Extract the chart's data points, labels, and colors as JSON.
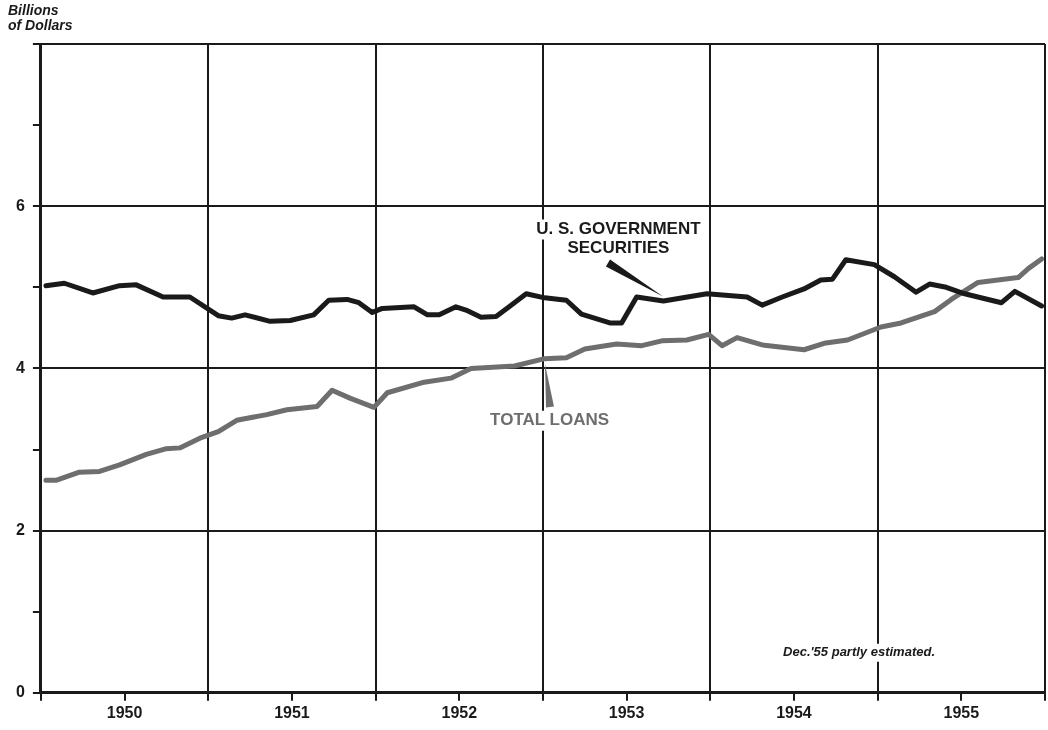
{
  "chart_data": {
    "type": "line",
    "ylabel": "Billions\nof Dollars",
    "xlim": [
      1950,
      1956
    ],
    "xticks": [
      {
        "value": 1950,
        "label": null
      },
      {
        "value": 1950.5,
        "label": "1950"
      },
      {
        "value": 1951,
        "label": null
      },
      {
        "value": 1951.5,
        "label": "1951"
      },
      {
        "value": 1952,
        "label": null
      },
      {
        "value": 1952.5,
        "label": "1952"
      },
      {
        "value": 1953,
        "label": null
      },
      {
        "value": 1953.5,
        "label": "1953"
      },
      {
        "value": 1954,
        "label": null
      },
      {
        "value": 1954.5,
        "label": "1954"
      },
      {
        "value": 1955,
        "label": null
      },
      {
        "value": 1955.5,
        "label": "1955"
      },
      {
        "value": 1956,
        "label": null
      }
    ],
    "ylim": [
      0,
      8
    ],
    "yticks": [
      0,
      {
        "value": 1,
        "label": null
      },
      2,
      {
        "value": 3,
        "label": null
      },
      4,
      {
        "value": 5,
        "label": null
      },
      6,
      {
        "value": 7,
        "label": null
      },
      {
        "value": 8,
        "label": null
      }
    ],
    "grid": true,
    "legend": false,
    "marker": "none",
    "line_style": "solid",
    "annotations": [
      "Dec.'55 partly estimated."
    ],
    "series": [
      {
        "name": "U. S. GOVERNMENT\nSECURITIES",
        "color": "#1a1a1a",
        "x": [
          1950.03,
          1950.14,
          1950.31,
          1950.47,
          1950.57,
          1950.73,
          1950.89,
          1951.06,
          1951.14,
          1951.22,
          1951.37,
          1951.49,
          1951.63,
          1951.72,
          1951.83,
          1951.9,
          1951.98,
          1952.04,
          1952.23,
          1952.31,
          1952.38,
          1952.48,
          1952.54,
          1952.63,
          1952.72,
          1952.9,
          1953.01,
          1953.14,
          1953.23,
          1953.4,
          1953.47,
          1953.56,
          1953.72,
          1953.98,
          1954.22,
          1954.31,
          1954.43,
          1954.56,
          1954.66,
          1954.73,
          1954.81,
          1954.98,
          1955.1,
          1955.23,
          1955.31,
          1955.41,
          1955.52,
          1955.66,
          1955.74,
          1955.82,
          1955.98
        ],
        "values": [
          5.02,
          5.05,
          4.93,
          5.02,
          5.03,
          4.88,
          4.88,
          4.65,
          4.62,
          4.66,
          4.58,
          4.59,
          4.66,
          4.84,
          4.85,
          4.81,
          4.69,
          4.74,
          4.76,
          4.66,
          4.66,
          4.76,
          4.72,
          4.63,
          4.64,
          4.92,
          4.87,
          4.84,
          4.67,
          4.56,
          4.56,
          4.88,
          4.83,
          4.92,
          4.88,
          4.78,
          4.88,
          4.98,
          5.09,
          5.1,
          5.34,
          5.28,
          5.13,
          4.94,
          5.04,
          5.0,
          4.92,
          4.85,
          4.81,
          4.95,
          4.77
        ]
      },
      {
        "name": "TOTAL LOANS",
        "color": "#6e6e6e",
        "x": [
          1950.03,
          1950.09,
          1950.23,
          1950.35,
          1950.47,
          1950.63,
          1950.75,
          1950.83,
          1950.95,
          1951.06,
          1951.17,
          1951.35,
          1951.47,
          1951.65,
          1951.74,
          1951.85,
          1951.99,
          1952.07,
          1952.29,
          1952.45,
          1952.57,
          1952.83,
          1953.01,
          1953.14,
          1953.25,
          1953.44,
          1953.59,
          1953.71,
          1953.86,
          1953.99,
          1954.07,
          1954.16,
          1954.31,
          1954.56,
          1954.68,
          1954.82,
          1955.02,
          1955.14,
          1955.34,
          1955.44,
          1955.6,
          1955.84,
          1955.9,
          1955.98
        ],
        "values": [
          2.62,
          2.62,
          2.72,
          2.73,
          2.81,
          2.94,
          3.01,
          3.02,
          3.14,
          3.22,
          3.36,
          3.43,
          3.49,
          3.53,
          3.73,
          3.63,
          3.52,
          3.7,
          3.83,
          3.88,
          4.0,
          4.03,
          4.12,
          4.13,
          4.24,
          4.3,
          4.28,
          4.34,
          4.35,
          4.42,
          4.28,
          4.38,
          4.29,
          4.23,
          4.31,
          4.35,
          4.51,
          4.56,
          4.7,
          4.85,
          5.06,
          5.12,
          5.23,
          5.35
        ]
      }
    ]
  }
}
